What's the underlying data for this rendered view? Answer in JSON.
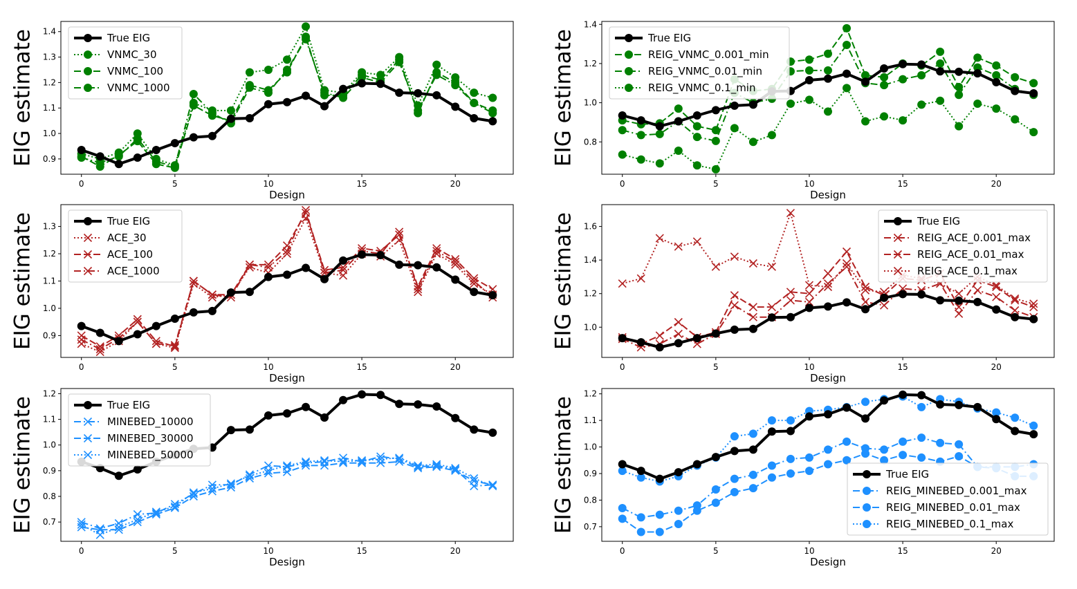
{
  "colors": {
    "true": "#000000",
    "green": "#008000",
    "red": "#b22222",
    "blue": "#1e90ff"
  },
  "chart_data": [
    {
      "type": "line",
      "xlabel": "Design",
      "ylabel": "EIG estimate",
      "xlim": [
        -1.1,
        23.1
      ],
      "ylim": [
        0.84,
        1.44
      ],
      "xticks": [
        0,
        5,
        10,
        15,
        20
      ],
      "yticks": [
        0.9,
        1.0,
        1.1,
        1.2,
        1.3,
        1.4
      ],
      "ytick_labels": [
        "0.9",
        "1.0",
        "1.1",
        "1.2",
        "1.3",
        "1.4"
      ],
      "legend_loc": "top-left",
      "series": [
        {
          "name": "True EIG",
          "color": "true",
          "dash": "solid",
          "marker": "o",
          "width": 4,
          "values": [
            0.935,
            0.91,
            0.88,
            0.905,
            0.935,
            0.962,
            0.985,
            0.99,
            1.058,
            1.06,
            1.115,
            1.123,
            1.148,
            1.107,
            1.175,
            1.197,
            1.195,
            1.16,
            1.158,
            1.15,
            1.105,
            1.06,
            1.048
          ]
        },
        {
          "name": "VNMC_30",
          "color": "green",
          "dash": "dotted",
          "marker": "o",
          "width": 2,
          "values": [
            0.92,
            0.9,
            0.925,
            1.0,
            0.9,
            0.875,
            1.12,
            1.09,
            1.09,
            1.24,
            1.25,
            1.29,
            1.42,
            1.17,
            1.16,
            1.24,
            1.23,
            1.3,
            1.11,
            1.27,
            1.22,
            1.16,
            1.14
          ]
        },
        {
          "name": "VNMC_100",
          "color": "green",
          "dash": "dashed",
          "marker": "o",
          "width": 2,
          "values": [
            0.91,
            0.87,
            0.915,
            0.97,
            0.88,
            0.865,
            1.11,
            1.07,
            1.05,
            1.19,
            1.17,
            1.24,
            1.38,
            1.15,
            1.15,
            1.23,
            1.21,
            1.29,
            1.08,
            1.24,
            1.2,
            1.12,
            1.09
          ]
        },
        {
          "name": "VNMC_1000",
          "color": "green",
          "dash": "dashdot",
          "marker": "o",
          "width": 2,
          "values": [
            0.905,
            0.885,
            0.91,
            0.98,
            0.89,
            0.87,
            1.155,
            1.08,
            1.04,
            1.18,
            1.16,
            1.25,
            1.37,
            1.16,
            1.14,
            1.22,
            1.2,
            1.28,
            1.09,
            1.23,
            1.19,
            1.12,
            1.08
          ]
        }
      ]
    },
    {
      "type": "line",
      "xlabel": "Design",
      "ylabel": "EIG estimate",
      "xlim": [
        -1.1,
        23.1
      ],
      "ylim": [
        0.635,
        1.415
      ],
      "xticks": [
        0,
        5,
        10,
        15,
        20
      ],
      "yticks": [
        0.8,
        1.0,
        1.2,
        1.4
      ],
      "ytick_labels": [
        "0.8",
        "1.0",
        "1.2",
        "1.4"
      ],
      "legend_loc": "top-left",
      "series": [
        {
          "name": "True EIG",
          "color": "true",
          "dash": "solid",
          "marker": "o",
          "width": 4,
          "values": [
            0.935,
            0.91,
            0.88,
            0.905,
            0.935,
            0.962,
            0.985,
            0.99,
            1.058,
            1.06,
            1.115,
            1.123,
            1.148,
            1.107,
            1.175,
            1.197,
            1.195,
            1.16,
            1.158,
            1.15,
            1.105,
            1.06,
            1.048
          ]
        },
        {
          "name": "REIG_VNMC_0.001_min",
          "color": "green",
          "dash": "dashed",
          "marker": "o",
          "width": 2,
          "values": [
            0.91,
            0.89,
            0.895,
            0.97,
            0.88,
            0.86,
            1.12,
            1.06,
            1.07,
            1.21,
            1.22,
            1.25,
            1.38,
            1.14,
            1.13,
            1.2,
            1.19,
            1.26,
            1.08,
            1.23,
            1.19,
            1.13,
            1.1
          ]
        },
        {
          "name": "REIG_VNMC_0.01_min",
          "color": "green",
          "dash": "dashdot",
          "marker": "o",
          "width": 2,
          "values": [
            0.86,
            0.835,
            0.84,
            0.905,
            0.825,
            0.805,
            1.05,
            1.0,
            1.02,
            1.16,
            1.165,
            1.165,
            1.295,
            1.1,
            1.09,
            1.12,
            1.14,
            1.2,
            1.04,
            1.18,
            1.14,
            1.07,
            1.04
          ]
        },
        {
          "name": "REIG_VNMC_0.1_min",
          "color": "green",
          "dash": "dotted",
          "marker": "o",
          "width": 2,
          "values": [
            0.735,
            0.71,
            0.69,
            0.755,
            0.68,
            0.66,
            0.87,
            0.8,
            0.835,
            0.995,
            1.015,
            0.955,
            1.075,
            0.905,
            0.93,
            0.91,
            0.99,
            1.01,
            0.88,
            0.995,
            0.97,
            0.915,
            0.85
          ]
        }
      ]
    },
    {
      "type": "line",
      "xlabel": "Design",
      "ylabel": "EIG estimate",
      "xlim": [
        -1.1,
        23.1
      ],
      "ylim": [
        0.82,
        1.38
      ],
      "xticks": [
        0,
        5,
        10,
        15,
        20
      ],
      "yticks": [
        0.9,
        1.0,
        1.1,
        1.2,
        1.3
      ],
      "ytick_labels": [
        "0.9",
        "1.0",
        "1.1",
        "1.2",
        "1.3"
      ],
      "legend_loc": "top-left",
      "series": [
        {
          "name": "True EIG",
          "color": "true",
          "dash": "solid",
          "marker": "o",
          "width": 4,
          "values": [
            0.935,
            0.91,
            0.88,
            0.905,
            0.935,
            0.962,
            0.985,
            0.99,
            1.058,
            1.06,
            1.115,
            1.123,
            1.148,
            1.107,
            1.175,
            1.197,
            1.195,
            1.16,
            1.158,
            1.15,
            1.105,
            1.06,
            1.048
          ]
        },
        {
          "name": "ACE_30",
          "color": "red",
          "dash": "dotted",
          "marker": "x",
          "width": 2,
          "values": [
            0.87,
            0.84,
            0.88,
            0.95,
            0.87,
            0.855,
            1.09,
            1.04,
            1.05,
            1.15,
            1.13,
            1.2,
            1.33,
            1.13,
            1.12,
            1.2,
            1.19,
            1.25,
            1.06,
            1.2,
            1.16,
            1.09,
            1.05
          ]
        },
        {
          "name": "ACE_100",
          "color": "red",
          "dashed": true,
          "dash": "dashed",
          "marker": "x",
          "width": 2,
          "values": [
            0.9,
            0.86,
            0.9,
            0.96,
            0.88,
            0.86,
            1.1,
            1.05,
            1.05,
            1.16,
            1.16,
            1.23,
            1.35,
            1.14,
            1.15,
            1.22,
            1.21,
            1.27,
            1.08,
            1.22,
            1.18,
            1.11,
            1.07
          ]
        },
        {
          "name": "ACE_1000",
          "color": "red",
          "dash": "dashdot",
          "marker": "x",
          "width": 2,
          "values": [
            0.885,
            0.85,
            0.89,
            0.95,
            0.87,
            0.865,
            1.1,
            1.05,
            1.04,
            1.16,
            1.15,
            1.21,
            1.36,
            1.13,
            1.14,
            1.21,
            1.2,
            1.28,
            1.07,
            1.21,
            1.17,
            1.1,
            1.04
          ]
        }
      ]
    },
    {
      "type": "line",
      "xlabel": "Design",
      "ylabel": "EIG estimate",
      "xlim": [
        -1.1,
        23.1
      ],
      "ylim": [
        0.82,
        1.73
      ],
      "xticks": [
        0,
        5,
        10,
        15,
        20
      ],
      "yticks": [
        1.0,
        1.2,
        1.4,
        1.6
      ],
      "ytick_labels": [
        "1.0",
        "1.2",
        "1.4",
        "1.6"
      ],
      "legend_loc": "top-right",
      "series": [
        {
          "name": "True EIG",
          "color": "true",
          "dash": "solid",
          "marker": "o",
          "width": 4,
          "values": [
            0.935,
            0.91,
            0.88,
            0.905,
            0.935,
            0.962,
            0.985,
            0.99,
            1.058,
            1.06,
            1.115,
            1.123,
            1.148,
            1.107,
            1.175,
            1.197,
            1.195,
            1.16,
            1.158,
            1.15,
            1.105,
            1.06,
            1.048
          ]
        },
        {
          "name": "REIG_ACE_0.001_max",
          "color": "red",
          "dash": "dashdot",
          "marker": "x",
          "width": 2,
          "values": [
            0.93,
            0.88,
            0.9,
            0.96,
            0.9,
            0.96,
            1.13,
            1.06,
            1.06,
            1.16,
            1.15,
            1.26,
            1.36,
            1.15,
            1.13,
            1.23,
            1.22,
            1.26,
            1.08,
            1.22,
            1.18,
            1.1,
            1.06
          ]
        },
        {
          "name": "REIG_ACE_0.01_max",
          "color": "red",
          "dash": "dashed",
          "marker": "x",
          "width": 2,
          "values": [
            0.94,
            0.9,
            0.95,
            1.03,
            0.94,
            0.97,
            1.19,
            1.12,
            1.12,
            1.21,
            1.2,
            1.32,
            1.45,
            1.24,
            1.19,
            1.29,
            1.28,
            1.32,
            1.12,
            1.28,
            1.24,
            1.16,
            1.12
          ]
        },
        {
          "name": "REIG_ACE_0.1_max",
          "color": "red",
          "dash": "dotted",
          "marker": "x",
          "width": 2,
          "values": [
            1.26,
            1.29,
            1.53,
            1.48,
            1.51,
            1.36,
            1.42,
            1.38,
            1.36,
            1.68,
            1.25,
            1.24,
            1.38,
            1.22,
            1.21,
            1.31,
            1.29,
            1.26,
            1.2,
            1.3,
            1.25,
            1.17,
            1.14
          ]
        }
      ]
    },
    {
      "type": "line",
      "xlabel": "Design",
      "ylabel": "EIG estimate",
      "xlim": [
        -1.1,
        23.1
      ],
      "ylim": [
        0.625,
        1.22
      ],
      "xticks": [
        0,
        5,
        10,
        15,
        20
      ],
      "yticks": [
        0.7,
        0.8,
        0.9,
        1.0,
        1.1,
        1.2
      ],
      "ytick_labels": [
        "0.7",
        "0.8",
        "0.9",
        "1.0",
        "1.1",
        "1.2"
      ],
      "legend_loc": "top-left",
      "series": [
        {
          "name": "True EIG",
          "color": "true",
          "dash": "solid",
          "marker": "o",
          "width": 4,
          "values": [
            0.935,
            0.91,
            0.88,
            0.905,
            0.935,
            0.962,
            0.985,
            0.99,
            1.058,
            1.06,
            1.115,
            1.123,
            1.148,
            1.107,
            1.175,
            1.197,
            1.195,
            1.16,
            1.158,
            1.15,
            1.105,
            1.06,
            1.048
          ]
        },
        {
          "name": "MINEBED_10000",
          "color": "blue",
          "dash": "dashdot",
          "marker": "x",
          "width": 2,
          "values": [
            0.7,
            0.675,
            0.695,
            0.73,
            0.735,
            0.77,
            0.81,
            0.845,
            0.845,
            0.885,
            0.92,
            0.915,
            0.93,
            0.935,
            0.95,
            0.935,
            0.955,
            0.945,
            0.915,
            0.92,
            0.905,
            0.84,
            0.845
          ]
        },
        {
          "name": "MINEBED_30000",
          "color": "blue",
          "dash": "dashed",
          "marker": "x",
          "width": 2,
          "values": [
            0.68,
            0.67,
            0.67,
            0.7,
            0.73,
            0.755,
            0.8,
            0.82,
            0.835,
            0.87,
            0.89,
            0.895,
            0.92,
            0.92,
            0.93,
            0.93,
            0.93,
            0.935,
            0.91,
            0.915,
            0.9,
            0.86,
            0.845
          ]
        },
        {
          "name": "MINEBED_50000",
          "color": "blue",
          "dash": "dotted",
          "marker": "x",
          "width": 2,
          "values": [
            0.69,
            0.65,
            0.68,
            0.71,
            0.74,
            0.76,
            0.815,
            0.83,
            0.85,
            0.88,
            0.9,
            0.92,
            0.935,
            0.94,
            0.935,
            0.94,
            0.945,
            0.95,
            0.92,
            0.925,
            0.91,
            0.87,
            0.84
          ]
        }
      ]
    },
    {
      "type": "line",
      "xlabel": "Design",
      "ylabel": "EIG estimate",
      "xlim": [
        -1.1,
        23.1
      ],
      "ylim": [
        0.645,
        1.22
      ],
      "xticks": [
        0,
        5,
        10,
        15,
        20
      ],
      "yticks": [
        0.7,
        0.8,
        0.9,
        1.0,
        1.1,
        1.2
      ],
      "ytick_labels": [
        "0.7",
        "0.8",
        "0.9",
        "1.0",
        "1.1",
        "1.2"
      ],
      "legend_loc": "lower-right",
      "series": [
        {
          "name": "True EIG",
          "color": "true",
          "dash": "solid",
          "marker": "o",
          "width": 4,
          "values": [
            0.935,
            0.91,
            0.88,
            0.905,
            0.935,
            0.962,
            0.985,
            0.99,
            1.058,
            1.06,
            1.115,
            1.123,
            1.148,
            1.107,
            1.175,
            1.197,
            1.195,
            1.16,
            1.158,
            1.15,
            1.105,
            1.06,
            1.048
          ]
        },
        {
          "name": "REIG_MINEBED_0.001_max",
          "color": "blue",
          "dash": "dashdot",
          "marker": "o",
          "width": 2,
          "values": [
            0.77,
            0.735,
            0.745,
            0.76,
            0.78,
            0.84,
            0.88,
            0.895,
            0.93,
            0.955,
            0.96,
            0.99,
            1.02,
            0.995,
            0.99,
            1.02,
            1.035,
            1.015,
            1.01,
            0.925,
            0.925,
            0.925,
            0.935
          ]
        },
        {
          "name": "REIG_MINEBED_0.01_max",
          "color": "blue",
          "dash": "dashed",
          "marker": "o",
          "width": 2,
          "values": [
            0.73,
            0.68,
            0.68,
            0.71,
            0.76,
            0.79,
            0.83,
            0.845,
            0.885,
            0.9,
            0.91,
            0.935,
            0.95,
            0.975,
            0.95,
            0.97,
            0.96,
            0.945,
            0.965,
            0.925,
            0.92,
            0.89,
            0.89
          ]
        },
        {
          "name": "REIG_MINEBED_0.1_max",
          "color": "blue",
          "dash": "dotted",
          "marker": "o",
          "width": 2,
          "values": [
            0.91,
            0.885,
            0.87,
            0.89,
            0.93,
            0.96,
            1.04,
            1.05,
            1.1,
            1.1,
            1.135,
            1.14,
            1.15,
            1.17,
            1.18,
            1.19,
            1.15,
            1.18,
            1.17,
            1.145,
            1.13,
            1.11,
            1.08
          ]
        }
      ]
    }
  ]
}
